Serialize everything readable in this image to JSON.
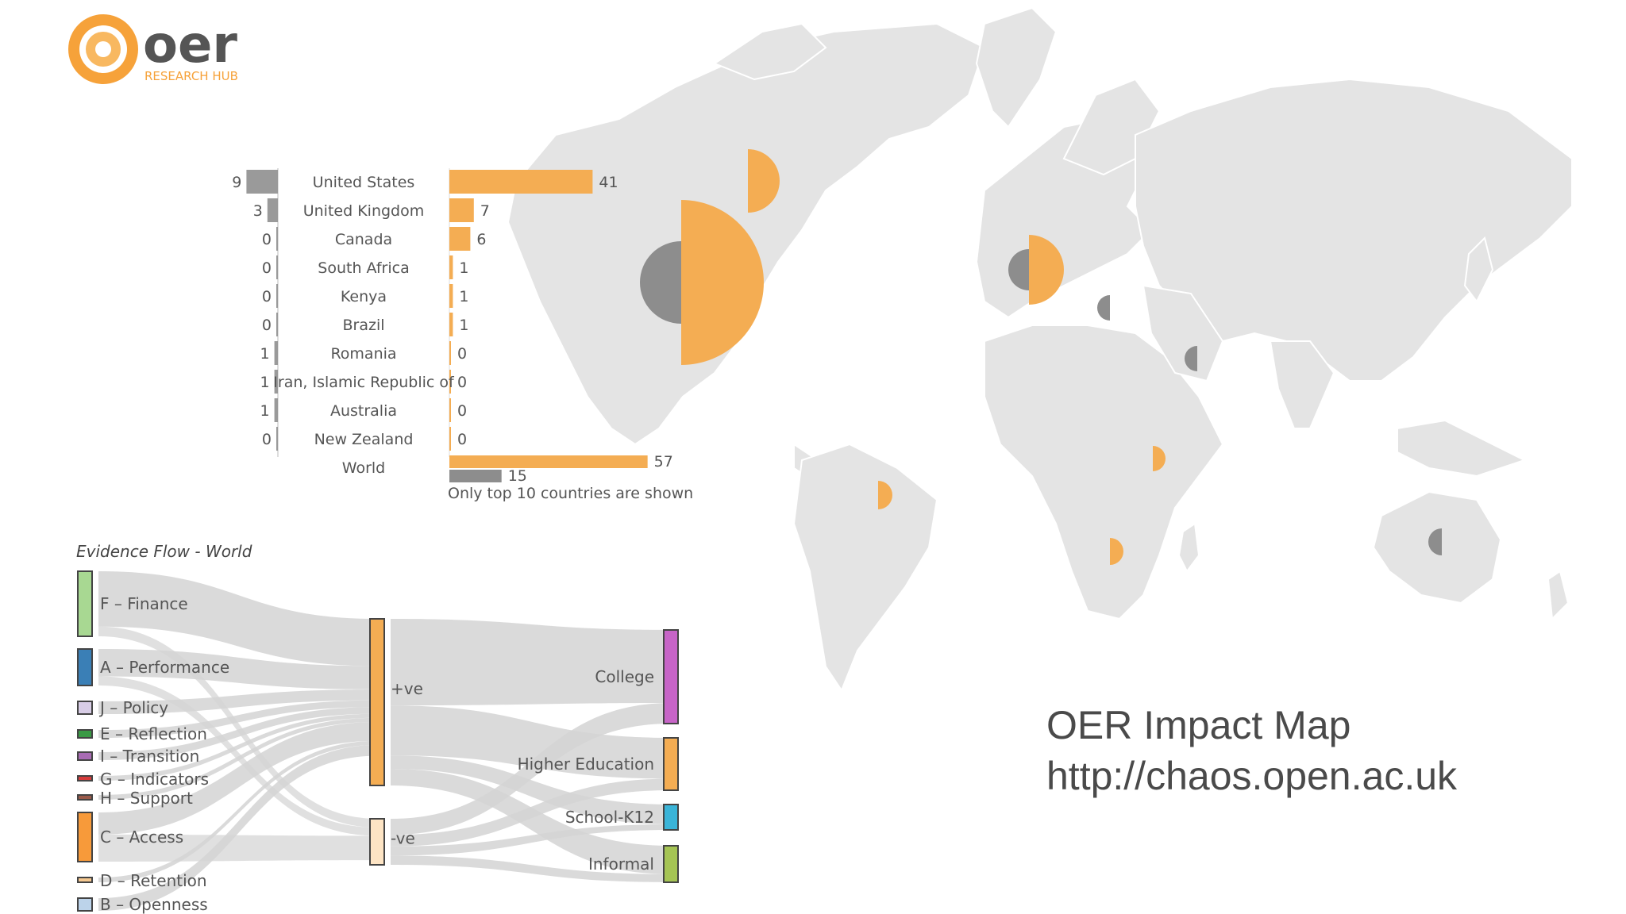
{
  "logo": {
    "brand": "oer",
    "tagline": "RESEARCH HUB"
  },
  "colors": {
    "positive": "#f4ad53",
    "negative": "#8d8d8d",
    "land": "#e3e3e3",
    "flow": "#d6d6d6"
  },
  "chart_data": [
    {
      "type": "bar",
      "categories": [
        "United States",
        "United Kingdom",
        "Canada",
        "South Africa",
        "Kenya",
        "Brazil",
        "Romania",
        "Iran, Islamic Republic of",
        "Australia",
        "New Zealand"
      ],
      "series": [
        {
          "values": [
            9,
            3,
            0,
            0,
            0,
            0,
            1,
            1,
            1,
            0
          ]
        },
        {
          "values": [
            41,
            7,
            6,
            1,
            1,
            1,
            0,
            0,
            0,
            0
          ]
        }
      ],
      "total": {
        "label": "World",
        "positive": 57,
        "negative": 15
      },
      "note": "Only top 10 countries are shown"
    },
    {
      "type": "sankey",
      "title": "Evidence Flow - World",
      "sources": [
        {
          "label": "F – Finance",
          "color": "#a8d892"
        },
        {
          "label": "A – Performance",
          "color": "#3a7fb6"
        },
        {
          "label": "J – Policy",
          "color": "#d8cde6"
        },
        {
          "label": "E – Reflection",
          "color": "#3a9a45"
        },
        {
          "label": "I – Transition",
          "color": "#a86bb3"
        },
        {
          "label": "G – Indicators",
          "color": "#d63b3b"
        },
        {
          "label": "H – Support",
          "color": "#9a5a4a"
        },
        {
          "label": "C – Access",
          "color": "#f79a3a"
        },
        {
          "label": "D – Retention",
          "color": "#f5c890"
        },
        {
          "label": "B – Openness",
          "color": "#bcd3ea"
        }
      ],
      "middle": [
        {
          "label": "+ve",
          "color": "#f4ad53"
        },
        {
          "label": "-ve",
          "color": "#fde4c4"
        }
      ],
      "targets": [
        {
          "label": "College",
          "color": "#c764c7"
        },
        {
          "label": "Higher Education",
          "color": "#f4ad53"
        },
        {
          "label": "School-K12",
          "color": "#3ab4d8"
        },
        {
          "label": "Informal",
          "color": "#a5c454"
        }
      ]
    }
  ],
  "caption": {
    "title": "OER Impact Map",
    "url": "http://chaos.open.ac.uk"
  }
}
